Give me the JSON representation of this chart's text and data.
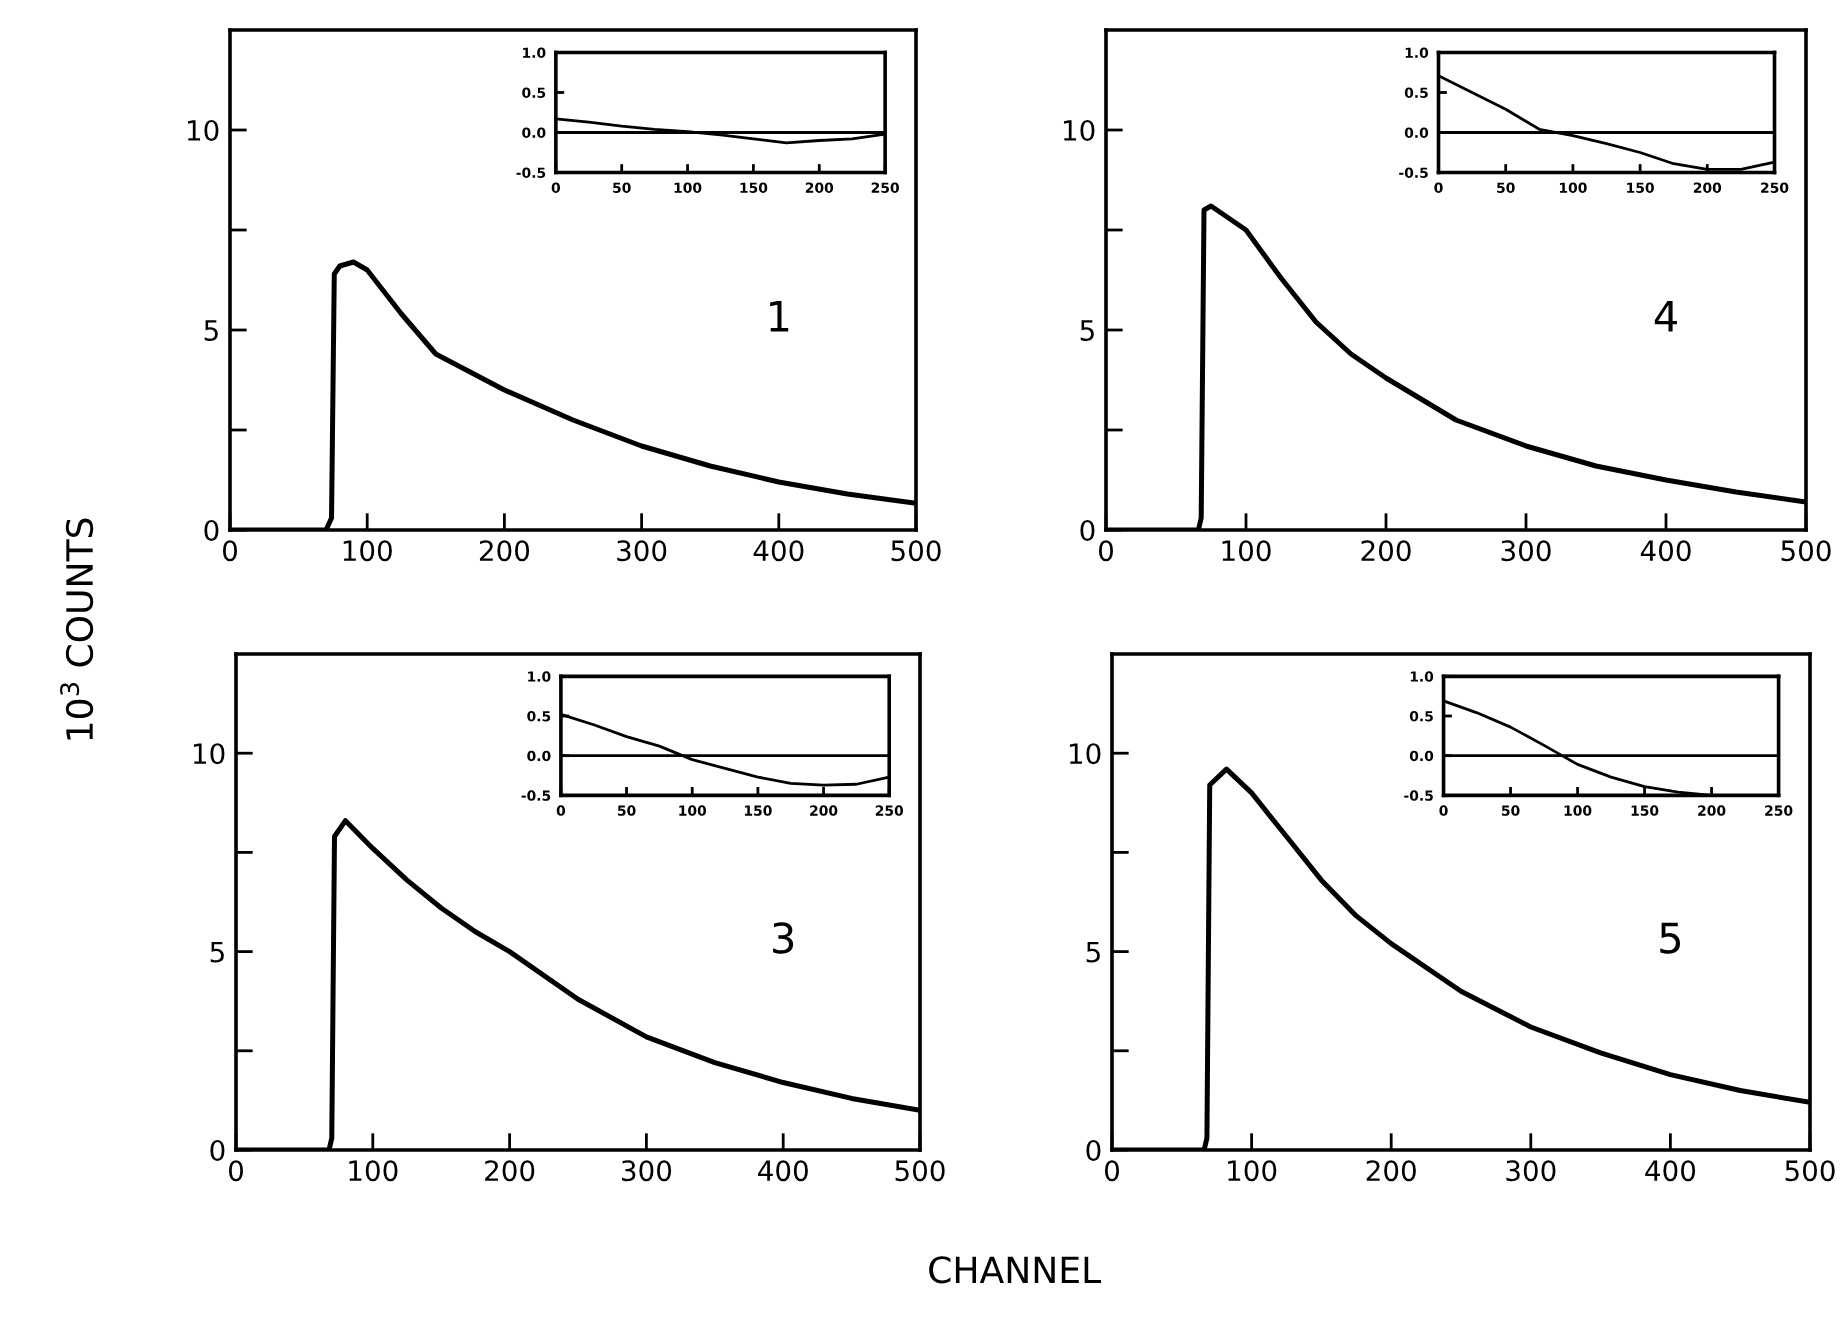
{
  "chart_data": [
    {
      "type": "line",
      "xlabel": "CHANNEL",
      "ylabel": "10$^{3}$ COUNTS",
      "annotations": [
        "1"
      ],
      "x": [
        0,
        70,
        74,
        76,
        80,
        90,
        100,
        125,
        150,
        175,
        200,
        250,
        300,
        350,
        400,
        450,
        500
      ],
      "series": [
        {
          "color": "#000000",
          "values": [
            0,
            0,
            0.3,
            6.4,
            6.6,
            6.7,
            6.5,
            5.4,
            4.4,
            3.95,
            3.5,
            2.75,
            2.1,
            1.6,
            1.2,
            0.9,
            0.67
          ]
        }
      ],
      "xlim": [
        0,
        500
      ],
      "xticks": [
        0,
        100,
        200,
        300,
        400,
        500
      ],
      "ylim": [
        0,
        12.5
      ],
      "yticks": [
        0,
        {
          "value": 2.5,
          "label": null
        },
        5,
        {
          "value": 7.5,
          "label": null
        },
        10
      ],
      "grid": false
    },
    {
      "type": "line",
      "x": [
        0,
        25,
        50,
        75,
        100,
        125,
        150,
        175,
        200,
        225,
        250
      ],
      "series": [
        {
          "color": "#000000",
          "values": [
            0.17,
            0.13,
            0.08,
            0.04,
            0.01,
            -0.03,
            -0.08,
            -0.13,
            -0.1,
            -0.08,
            -0.02
          ]
        }
      ],
      "xlim": [
        0,
        250
      ],
      "xticks": [
        0,
        50,
        100,
        150,
        200,
        250
      ],
      "ylim": [
        -0.5,
        1.0
      ],
      "yticks": [
        {
          "value": -0.5,
          "label": "-0.5"
        },
        {
          "value": 0,
          "label": "0.0"
        },
        {
          "value": 0.5,
          "label": "0.5"
        },
        {
          "value": 1.0,
          "label": "1.0"
        }
      ],
      "ref_lines": [
        {
          "axis": "y",
          "value": 0,
          "color": "#000000"
        }
      ],
      "grid": false
    },
    {
      "type": "line",
      "annotations": [
        "4"
      ],
      "x": [
        0,
        66,
        68,
        70,
        75,
        100,
        125,
        150,
        175,
        200,
        250,
        300,
        350,
        400,
        450,
        500
      ],
      "series": [
        {
          "color": "#000000",
          "values": [
            0,
            0,
            0.3,
            8.0,
            8.1,
            7.5,
            6.3,
            5.2,
            4.4,
            3.8,
            2.75,
            2.1,
            1.6,
            1.25,
            0.95,
            0.7
          ]
        }
      ],
      "xlim": [
        0,
        500
      ],
      "xticks": [
        0,
        100,
        200,
        300,
        400,
        500
      ],
      "ylim": [
        0,
        12.5
      ],
      "yticks": [
        0,
        {
          "value": 2.5,
          "label": null
        },
        5,
        {
          "value": 7.5,
          "label": null
        },
        10
      ],
      "grid": false
    },
    {
      "type": "line",
      "x": [
        0,
        25,
        50,
        75,
        100,
        125,
        150,
        175,
        200,
        225,
        250
      ],
      "series": [
        {
          "color": "#000000",
          "values": [
            0.71,
            0.5,
            0.29,
            0.04,
            -0.04,
            -0.14,
            -0.25,
            -0.39,
            -0.46,
            -0.46,
            -0.37
          ]
        }
      ],
      "xlim": [
        0,
        250
      ],
      "xticks": [
        0,
        50,
        100,
        150,
        200,
        250
      ],
      "ylim": [
        -0.5,
        1.0
      ],
      "yticks": [
        {
          "value": -0.5,
          "label": "-0.5"
        },
        {
          "value": 0,
          "label": "0.0"
        },
        {
          "value": 0.5,
          "label": "0.5"
        },
        {
          "value": 1.0,
          "label": "1.0"
        }
      ],
      "ref_lines": [
        {
          "axis": "y",
          "value": 0,
          "color": "#000000"
        }
      ],
      "grid": false
    },
    {
      "type": "line",
      "annotations": [
        "3"
      ],
      "x": [
        0,
        68,
        70,
        72,
        80,
        100,
        125,
        150,
        175,
        200,
        250,
        300,
        350,
        400,
        450,
        500
      ],
      "series": [
        {
          "color": "#000000",
          "values": [
            0,
            0,
            0.3,
            7.9,
            8.3,
            7.6,
            6.8,
            6.1,
            5.5,
            5.0,
            3.8,
            2.85,
            2.2,
            1.7,
            1.3,
            1.0
          ]
        }
      ],
      "xlim": [
        0,
        500
      ],
      "xticks": [
        0,
        100,
        200,
        300,
        400,
        500
      ],
      "ylim": [
        0,
        12.5
      ],
      "yticks": [
        0,
        {
          "value": 2.5,
          "label": null
        },
        5,
        {
          "value": 7.5,
          "label": null
        },
        10
      ],
      "grid": false
    },
    {
      "type": "line",
      "x": [
        0,
        25,
        50,
        75,
        100,
        125,
        150,
        175,
        200,
        225,
        250
      ],
      "series": [
        {
          "color": "#000000",
          "values": [
            0.52,
            0.39,
            0.24,
            0.12,
            -0.05,
            -0.16,
            -0.27,
            -0.35,
            -0.37,
            -0.36,
            -0.27
          ]
        }
      ],
      "xlim": [
        0,
        250
      ],
      "xticks": [
        0,
        50,
        100,
        150,
        200,
        250
      ],
      "ylim": [
        -0.5,
        1.0
      ],
      "yticks": [
        {
          "value": -0.5,
          "label": "-0.5"
        },
        {
          "value": 0,
          "label": "0.0"
        },
        {
          "value": 0.5,
          "label": "0.5"
        },
        {
          "value": 1.0,
          "label": "1.0"
        }
      ],
      "ref_lines": [
        {
          "axis": "y",
          "value": 0,
          "color": "#000000"
        }
      ],
      "grid": false
    },
    {
      "type": "line",
      "annotations": [
        "5"
      ],
      "x": [
        0,
        66,
        68,
        70,
        82,
        100,
        125,
        150,
        175,
        200,
        250,
        300,
        350,
        400,
        450,
        500
      ],
      "series": [
        {
          "color": "#000000",
          "values": [
            0,
            0,
            0.3,
            9.2,
            9.6,
            9.0,
            7.9,
            6.8,
            5.9,
            5.2,
            4.0,
            3.1,
            2.45,
            1.9,
            1.5,
            1.2
          ]
        }
      ],
      "xlim": [
        0,
        500
      ],
      "xticks": [
        0,
        100,
        200,
        300,
        400,
        500
      ],
      "ylim": [
        0,
        12.5
      ],
      "yticks": [
        0,
        {
          "value": 2.5,
          "label": null
        },
        5,
        {
          "value": 7.5,
          "label": null
        },
        10
      ],
      "grid": false
    },
    {
      "type": "line",
      "x": [
        0,
        25,
        50,
        75,
        100,
        125,
        150,
        175,
        200
      ],
      "series": [
        {
          "color": "#000000",
          "values": [
            0.69,
            0.54,
            0.36,
            0.13,
            -0.11,
            -0.27,
            -0.39,
            -0.46,
            -0.5
          ]
        }
      ],
      "xlim": [
        0,
        250
      ],
      "xticks": [
        0,
        50,
        100,
        150,
        200,
        250
      ],
      "ylim": [
        -0.5,
        1.0
      ],
      "yticks": [
        {
          "value": -0.5,
          "label": "-0.5"
        },
        {
          "value": 0,
          "label": "0.0"
        },
        {
          "value": 0.5,
          "label": "0.5"
        },
        {
          "value": 1.0,
          "label": "1.0"
        }
      ],
      "ref_lines": [
        {
          "axis": "y",
          "value": 0,
          "color": "#000000"
        }
      ],
      "grid": false
    }
  ]
}
